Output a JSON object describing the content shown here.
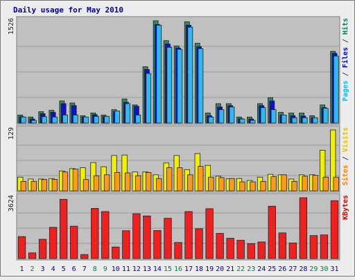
{
  "chart_data": {
    "type": "bar",
    "title": "Daily usage for May 2010",
    "categories": [
      "1",
      "2",
      "3",
      "4",
      "5",
      "6",
      "7",
      "8",
      "9",
      "10",
      "11",
      "12",
      "13",
      "14",
      "15",
      "16",
      "17",
      "18",
      "19",
      "20",
      "21",
      "22",
      "23",
      "24",
      "25",
      "26",
      "27",
      "28",
      "29",
      "30",
      "31"
    ],
    "weekend_days": [
      "2",
      "8",
      "9",
      "15",
      "16",
      "22",
      "23",
      "29",
      "30"
    ],
    "panels": [
      {
        "id": "hits",
        "ymax": 1526,
        "ymax_label": "1526",
        "right_label_parts": [
          {
            "text": "Pages",
            "color": "#00c0ff"
          },
          {
            "text": " / ",
            "color": "#404040"
          },
          {
            "text": "Files",
            "color": "#0000cc"
          },
          {
            "text": " / ",
            "color": "#404040"
          },
          {
            "text": "Hits",
            "color": "#008060"
          }
        ],
        "series": [
          {
            "name": "Hits",
            "color": "#2e8b57",
            "values": [
              120,
              90,
              170,
              190,
              330,
              300,
              110,
              150,
              120,
              200,
              360,
              270,
              840,
              1526,
              1230,
              1150,
              1510,
              1190,
              150,
              290,
              290,
              90,
              90,
              290,
              380,
              160,
              150,
              150,
              110,
              270,
              1070
            ]
          },
          {
            "name": "Files",
            "color": "#1010d0",
            "values": [
              95,
              60,
              140,
              160,
              290,
              260,
              90,
              125,
              100,
              170,
              310,
              250,
              800,
              1470,
              1180,
              1120,
              1460,
              1140,
              110,
              240,
              260,
              65,
              60,
              260,
              330,
              120,
              110,
              105,
              80,
              230,
              1040
            ]
          },
          {
            "name": "Pages",
            "color": "#30b8f0",
            "values": [
              90,
              40,
              95,
              90,
              120,
              120,
              90,
              100,
              100,
              180,
              290,
              120,
              740,
              1460,
              1130,
              1100,
              1430,
              1110,
              90,
              200,
              240,
              60,
              40,
              230,
              200,
              120,
              80,
              80,
              80,
              220,
              1000
            ]
          }
        ]
      },
      {
        "id": "visits",
        "ymax": 129,
        "ymax_label": "129",
        "right_label_parts": [
          {
            "text": "Sites",
            "color": "#ff8000"
          },
          {
            "text": " / ",
            "color": "#404040"
          },
          {
            "text": "Visits",
            "color": "#e0c000"
          }
        ],
        "series": [
          {
            "name": "Visits",
            "color": "#f0f000",
            "values": [
              29,
              25,
              25,
              26,
              42,
              47,
              49,
              60,
              51,
              75,
              76,
              40,
              40,
              34,
              59,
              75,
              45,
              79,
              54,
              31,
              26,
              26,
              22,
              29,
              35,
              34,
              25,
              34,
              34,
              86,
              129
            ]
          },
          {
            "name": "Sites",
            "color": "#ff9a18",
            "values": [
              20,
              20,
              24,
              24,
              40,
              46,
              24,
              32,
              34,
              39,
              38,
              32,
              39,
              26,
              49,
              49,
              34,
              52,
              29,
              28,
              26,
              19,
              19,
              20,
              30,
              34,
              20,
              31,
              33,
              29,
              29
            ]
          }
        ]
      },
      {
        "id": "kbytes",
        "ymax": 3624,
        "ymax_label": "3624",
        "right_label_parts": [
          {
            "text": "KBytes",
            "color": "#cc0000"
          }
        ],
        "series": [
          {
            "name": "KBytes",
            "color": "#ee2020",
            "values": [
              1310,
              340,
              1150,
              1860,
              3530,
              1930,
              240,
              2990,
              2800,
              690,
              1660,
              2670,
              2540,
              1670,
              2400,
              960,
              2800,
              1780,
              2970,
              1500,
              1210,
              1090,
              890,
              990,
              3120,
              1530,
              930,
              3624,
              1370,
              1410,
              3450
            ]
          }
        ]
      }
    ]
  }
}
